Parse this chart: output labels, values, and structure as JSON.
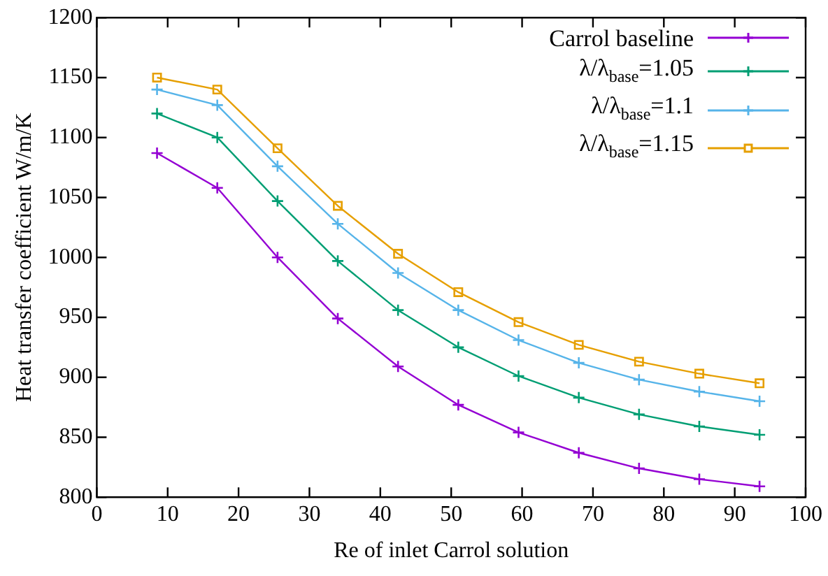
{
  "chart_data": {
    "type": "line",
    "xlabel": "Re of inlet Carrol solution",
    "ylabel": "Heat transfer coefficient W/m/K",
    "x": [
      8.5,
      17,
      25.5,
      34,
      42.5,
      51,
      59.5,
      68,
      76.5,
      85,
      93.5
    ],
    "xlim": [
      0,
      100
    ],
    "xticks": [
      0,
      10,
      20,
      30,
      40,
      50,
      60,
      70,
      80,
      90,
      100
    ],
    "ylim": [
      800,
      1200
    ],
    "yticks": [
      800,
      850,
      900,
      950,
      1000,
      1050,
      1100,
      1150,
      1200
    ],
    "grid": false,
    "legend": "top right",
    "line_style": "solid",
    "series": [
      {
        "name": "Carrol baseline",
        "color": "#9400d3",
        "marker": "cross",
        "values": [
          1087,
          1058,
          1000,
          949,
          909,
          877,
          854,
          837,
          824,
          815,
          809
        ]
      },
      {
        "name": "λ/λ$_{base}$=1.05",
        "color": "#009e73",
        "marker": "cross",
        "values": [
          1120,
          1100,
          1047,
          997,
          956,
          925,
          901,
          883,
          869,
          859,
          852
        ]
      },
      {
        "name": "λ/λ$_{base}$=1.1",
        "color": "#56b4e9",
        "marker": "cross",
        "values": [
          1140,
          1127,
          1076,
          1028,
          987,
          956,
          931,
          912,
          898,
          888,
          880
        ]
      },
      {
        "name": "λ/λ$_{base}$=1.15",
        "color": "#e69f00",
        "marker": "square",
        "values": [
          1150,
          1140,
          1091,
          1043,
          1003,
          971,
          946,
          927,
          913,
          903,
          895
        ]
      }
    ]
  }
}
